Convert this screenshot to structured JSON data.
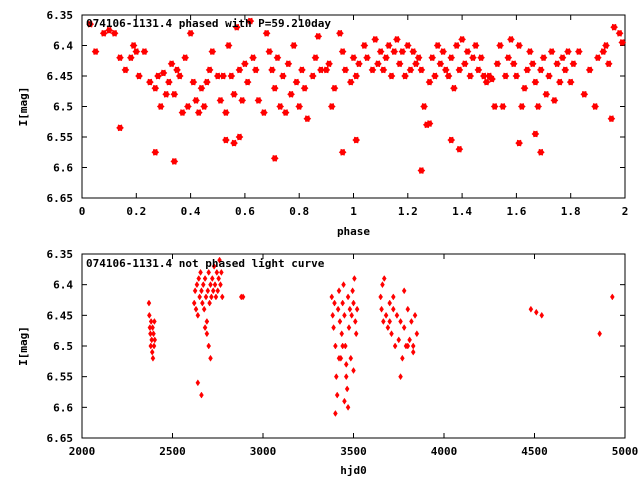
{
  "chart_data": [
    {
      "type": "scatter",
      "title": "074106-1131.4 phased with P=59.210day",
      "xlabel": "phase",
      "ylabel": "I[mag]",
      "xlim": [
        0,
        2
      ],
      "ylim": [
        6.35,
        6.65
      ],
      "y_inverted": true,
      "x_ticks": [
        "0",
        "0.2",
        "0.4",
        "0.6",
        "0.8",
        "1",
        "1.2",
        "1.4",
        "1.6",
        "1.8",
        "2"
      ],
      "y_ticks": [
        "6.35",
        "6.4",
        "6.45",
        "6.5",
        "6.55",
        "6.6",
        "6.65"
      ],
      "marker": "star",
      "color": "#ff0000",
      "points": [
        [
          0.03,
          6.365
        ],
        [
          0.05,
          6.41
        ],
        [
          0.08,
          6.38
        ],
        [
          0.1,
          6.375
        ],
        [
          0.12,
          6.38
        ],
        [
          0.14,
          6.42
        ],
        [
          0.16,
          6.44
        ],
        [
          0.18,
          6.42
        ],
        [
          0.19,
          6.4
        ],
        [
          0.2,
          6.41
        ],
        [
          0.21,
          6.45
        ],
        [
          0.23,
          6.41
        ],
        [
          0.25,
          6.46
        ],
        [
          0.27,
          6.47
        ],
        [
          0.28,
          6.45
        ],
        [
          0.29,
          6.5
        ],
        [
          0.3,
          6.445
        ],
        [
          0.31,
          6.48
        ],
        [
          0.32,
          6.46
        ],
        [
          0.33,
          6.43
        ],
        [
          0.34,
          6.48
        ],
        [
          0.35,
          6.44
        ],
        [
          0.36,
          6.45
        ],
        [
          0.37,
          6.51
        ],
        [
          0.38,
          6.42
        ],
        [
          0.39,
          6.5
        ],
        [
          0.4,
          6.38
        ],
        [
          0.41,
          6.46
        ],
        [
          0.42,
          6.49
        ],
        [
          0.43,
          6.51
        ],
        [
          0.44,
          6.47
        ],
        [
          0.45,
          6.5
        ],
        [
          0.46,
          6.46
        ],
        [
          0.47,
          6.44
        ],
        [
          0.48,
          6.41
        ],
        [
          0.5,
          6.45
        ],
        [
          0.51,
          6.49
        ],
        [
          0.52,
          6.45
        ],
        [
          0.53,
          6.51
        ],
        [
          0.54,
          6.4
        ],
        [
          0.55,
          6.45
        ],
        [
          0.56,
          6.48
        ],
        [
          0.57,
          6.37
        ],
        [
          0.58,
          6.44
        ],
        [
          0.59,
          6.49
        ],
        [
          0.6,
          6.43
        ],
        [
          0.61,
          6.46
        ],
        [
          0.62,
          6.36
        ],
        [
          0.63,
          6.42
        ],
        [
          0.64,
          6.44
        ],
        [
          0.65,
          6.49
        ],
        [
          0.67,
          6.51
        ],
        [
          0.68,
          6.38
        ],
        [
          0.69,
          6.41
        ],
        [
          0.7,
          6.44
        ],
        [
          0.71,
          6.47
        ],
        [
          0.72,
          6.42
        ],
        [
          0.73,
          6.5
        ],
        [
          0.74,
          6.45
        ],
        [
          0.75,
          6.51
        ],
        [
          0.76,
          6.43
        ],
        [
          0.77,
          6.48
        ],
        [
          0.78,
          6.4
        ],
        [
          0.79,
          6.46
        ],
        [
          0.8,
          6.5
        ],
        [
          0.81,
          6.44
        ],
        [
          0.82,
          6.47
        ],
        [
          0.83,
          6.52
        ],
        [
          0.85,
          6.45
        ],
        [
          0.86,
          6.42
        ],
        [
          0.87,
          6.385
        ],
        [
          0.88,
          6.44
        ],
        [
          0.9,
          6.44
        ],
        [
          0.91,
          6.43
        ],
        [
          0.92,
          6.5
        ],
        [
          0.93,
          6.47
        ],
        [
          0.95,
          6.38
        ],
        [
          0.96,
          6.41
        ],
        [
          0.97,
          6.44
        ],
        [
          0.99,
          6.46
        ],
        [
          1.0,
          6.42
        ],
        [
          1.01,
          6.45
        ],
        [
          1.02,
          6.43
        ],
        [
          1.04,
          6.4
        ],
        [
          1.05,
          6.42
        ],
        [
          1.07,
          6.44
        ],
        [
          1.08,
          6.39
        ],
        [
          1.09,
          6.43
        ],
        [
          1.1,
          6.41
        ],
        [
          1.11,
          6.44
        ],
        [
          1.12,
          6.42
        ],
        [
          1.13,
          6.4
        ],
        [
          1.14,
          6.45
        ],
        [
          1.15,
          6.41
        ],
        [
          1.16,
          6.39
        ],
        [
          1.17,
          6.43
        ],
        [
          1.18,
          6.41
        ],
        [
          1.19,
          6.45
        ],
        [
          1.2,
          6.4
        ],
        [
          1.21,
          6.44
        ],
        [
          1.22,
          6.41
        ],
        [
          1.23,
          6.43
        ],
        [
          1.24,
          6.42
        ],
        [
          1.25,
          6.44
        ],
        [
          1.26,
          6.5
        ],
        [
          1.27,
          6.53
        ],
        [
          1.28,
          6.46
        ],
        [
          1.29,
          6.42
        ],
        [
          1.3,
          6.45
        ],
        [
          1.31,
          6.4
        ],
        [
          1.32,
          6.43
        ],
        [
          1.33,
          6.41
        ],
        [
          1.34,
          6.44
        ],
        [
          1.35,
          6.45
        ],
        [
          1.36,
          6.42
        ],
        [
          1.37,
          6.47
        ],
        [
          1.38,
          6.4
        ],
        [
          1.39,
          6.44
        ],
        [
          1.4,
          6.39
        ],
        [
          1.41,
          6.43
        ],
        [
          1.42,
          6.41
        ],
        [
          1.43,
          6.45
        ],
        [
          1.44,
          6.42
        ],
        [
          1.45,
          6.4
        ],
        [
          1.46,
          6.44
        ],
        [
          1.47,
          6.42
        ],
        [
          1.48,
          6.45
        ],
        [
          1.49,
          6.46
        ],
        [
          1.5,
          6.45
        ],
        [
          1.51,
          6.455
        ],
        [
          1.52,
          6.5
        ],
        [
          1.53,
          6.43
        ],
        [
          1.54,
          6.4
        ],
        [
          1.55,
          6.5
        ],
        [
          1.56,
          6.45
        ],
        [
          1.57,
          6.42
        ],
        [
          1.58,
          6.39
        ],
        [
          1.59,
          6.43
        ],
        [
          1.6,
          6.45
        ],
        [
          1.61,
          6.4
        ],
        [
          1.62,
          6.5
        ],
        [
          1.63,
          6.47
        ],
        [
          1.64,
          6.44
        ],
        [
          1.65,
          6.41
        ],
        [
          1.66,
          6.43
        ],
        [
          1.67,
          6.46
        ],
        [
          1.68,
          6.5
        ],
        [
          1.69,
          6.44
        ],
        [
          1.7,
          6.42
        ],
        [
          1.71,
          6.48
        ],
        [
          1.72,
          6.45
        ],
        [
          1.73,
          6.41
        ],
        [
          1.74,
          6.49
        ],
        [
          1.75,
          6.43
        ],
        [
          1.76,
          6.46
        ],
        [
          1.77,
          6.42
        ],
        [
          1.78,
          6.44
        ],
        [
          1.79,
          6.41
        ],
        [
          1.8,
          6.46
        ],
        [
          1.81,
          6.43
        ],
        [
          1.83,
          6.41
        ],
        [
          1.85,
          6.48
        ],
        [
          1.87,
          6.44
        ],
        [
          1.89,
          6.5
        ],
        [
          1.9,
          6.42
        ],
        [
          1.92,
          6.41
        ],
        [
          1.93,
          6.4
        ],
        [
          1.94,
          6.43
        ],
        [
          1.95,
          6.52
        ],
        [
          1.96,
          6.37
        ],
        [
          1.98,
          6.38
        ],
        [
          1.99,
          6.395
        ],
        [
          0.14,
          6.535
        ],
        [
          0.27,
          6.575
        ],
        [
          0.34,
          6.59
        ],
        [
          0.53,
          6.555
        ],
        [
          0.56,
          6.56
        ],
        [
          0.58,
          6.55
        ],
        [
          0.71,
          6.585
        ],
        [
          0.96,
          6.575
        ],
        [
          1.01,
          6.555
        ],
        [
          1.25,
          6.605
        ],
        [
          1.28,
          6.528
        ],
        [
          1.36,
          6.555
        ],
        [
          1.39,
          6.57
        ],
        [
          1.61,
          6.56
        ],
        [
          1.67,
          6.545
        ],
        [
          1.69,
          6.575
        ]
      ]
    },
    {
      "type": "scatter",
      "title": "074106-1131.4 not phased light curve",
      "xlabel": "hjd0",
      "ylabel": "I[mag]",
      "xlim": [
        2000,
        5000
      ],
      "ylim": [
        6.35,
        6.65
      ],
      "y_inverted": true,
      "x_ticks": [
        "2000",
        "2500",
        "3000",
        "3500",
        "4000",
        "4500",
        "5000"
      ],
      "y_ticks": [
        "6.35",
        "6.4",
        "6.45",
        "6.5",
        "6.55",
        "6.6",
        "6.65"
      ],
      "marker": "diamond",
      "color": "#ff0000",
      "points": [
        [
          2370,
          6.43
        ],
        [
          2372,
          6.45
        ],
        [
          2375,
          6.47
        ],
        [
          2378,
          6.48
        ],
        [
          2380,
          6.5
        ],
        [
          2382,
          6.46
        ],
        [
          2385,
          6.49
        ],
        [
          2388,
          6.51
        ],
        [
          2390,
          6.47
        ],
        [
          2392,
          6.52
        ],
        [
          2395,
          6.48
        ],
        [
          2398,
          6.5
        ],
        [
          2400,
          6.46
        ],
        [
          2402,
          6.49
        ],
        [
          2620,
          6.43
        ],
        [
          2625,
          6.41
        ],
        [
          2630,
          6.44
        ],
        [
          2635,
          6.4
        ],
        [
          2640,
          6.45
        ],
        [
          2645,
          6.39
        ],
        [
          2650,
          6.42
        ],
        [
          2655,
          6.38
        ],
        [
          2660,
          6.41
        ],
        [
          2665,
          6.43
        ],
        [
          2670,
          6.4
        ],
        [
          2675,
          6.44
        ],
        [
          2680,
          6.39
        ],
        [
          2685,
          6.42
        ],
        [
          2690,
          6.46
        ],
        [
          2695,
          6.41
        ],
        [
          2700,
          6.38
        ],
        [
          2705,
          6.43
        ],
        [
          2710,
          6.4
        ],
        [
          2715,
          6.42
        ],
        [
          2720,
          6.39
        ],
        [
          2725,
          6.41
        ],
        [
          2730,
          6.37
        ],
        [
          2735,
          6.4
        ],
        [
          2740,
          6.42
        ],
        [
          2745,
          6.38
        ],
        [
          2750,
          6.41
        ],
        [
          2755,
          6.39
        ],
        [
          2760,
          6.36
        ],
        [
          2765,
          6.4
        ],
        [
          2770,
          6.38
        ],
        [
          2775,
          6.42
        ],
        [
          2640,
          6.56
        ],
        [
          2660,
          6.58
        ],
        [
          2700,
          6.5
        ],
        [
          2710,
          6.52
        ],
        [
          2690,
          6.48
        ],
        [
          2680,
          6.47
        ],
        [
          2880,
          6.42
        ],
        [
          2890,
          6.42
        ],
        [
          3380,
          6.42
        ],
        [
          3385,
          6.45
        ],
        [
          3390,
          6.47
        ],
        [
          3395,
          6.43
        ],
        [
          3400,
          6.5
        ],
        [
          3405,
          6.55
        ],
        [
          3410,
          6.58
        ],
        [
          3415,
          6.44
        ],
        [
          3420,
          6.41
        ],
        [
          3425,
          6.46
        ],
        [
          3430,
          6.52
        ],
        [
          3435,
          6.48
        ],
        [
          3440,
          6.43
        ],
        [
          3445,
          6.4
        ],
        [
          3450,
          6.45
        ],
        [
          3455,
          6.5
        ],
        [
          3460,
          6.55
        ],
        [
          3465,
          6.57
        ],
        [
          3470,
          6.42
        ],
        [
          3475,
          6.47
        ],
        [
          3480,
          6.44
        ],
        [
          3485,
          6.52
        ],
        [
          3490,
          6.45
        ],
        [
          3495,
          6.41
        ],
        [
          3500,
          6.43
        ],
        [
          3505,
          6.39
        ],
        [
          3510,
          6.46
        ],
        [
          3515,
          6.48
        ],
        [
          3520,
          6.44
        ],
        [
          3400,
          6.61
        ],
        [
          3450,
          6.59
        ],
        [
          3470,
          6.6
        ],
        [
          3420,
          6.52
        ],
        [
          3440,
          6.5
        ],
        [
          3460,
          6.53
        ],
        [
          3500,
          6.54
        ],
        [
          3650,
          6.42
        ],
        [
          3655,
          6.44
        ],
        [
          3660,
          6.4
        ],
        [
          3665,
          6.46
        ],
        [
          3670,
          6.39
        ],
        [
          3680,
          6.45
        ],
        [
          3690,
          6.47
        ],
        [
          3700,
          6.43
        ],
        [
          3710,
          6.48
        ],
        [
          3720,
          6.44
        ],
        [
          3730,
          6.5
        ],
        [
          3740,
          6.45
        ],
        [
          3750,
          6.49
        ],
        [
          3760,
          6.46
        ],
        [
          3770,
          6.52
        ],
        [
          3780,
          6.47
        ],
        [
          3790,
          6.5
        ],
        [
          3800,
          6.44
        ],
        [
          3810,
          6.49
        ],
        [
          3820,
          6.46
        ],
        [
          3830,
          6.51
        ],
        [
          3840,
          6.45
        ],
        [
          3850,
          6.48
        ],
        [
          3700,
          6.46
        ],
        [
          3720,
          6.42
        ],
        [
          3760,
          6.55
        ],
        [
          3780,
          6.41
        ],
        [
          3800,
          6.5
        ],
        [
          3830,
          6.5
        ],
        [
          4480,
          6.44
        ],
        [
          4510,
          6.445
        ],
        [
          4540,
          6.45
        ],
        [
          4860,
          6.48
        ],
        [
          4930,
          6.42
        ]
      ]
    }
  ]
}
